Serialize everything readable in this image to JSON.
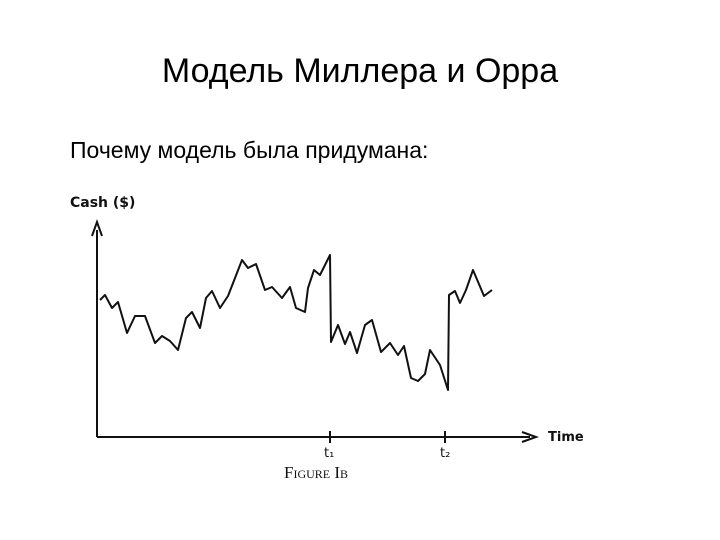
{
  "slide": {
    "title": "Модель Миллера и Орра",
    "subtitle": "Почему модель была придумана:"
  },
  "figure": {
    "y_label": "Cash ($)",
    "x_label": "Time",
    "t1": "t₁",
    "t2": "t₂",
    "caption": "Figure Ib"
  }
}
